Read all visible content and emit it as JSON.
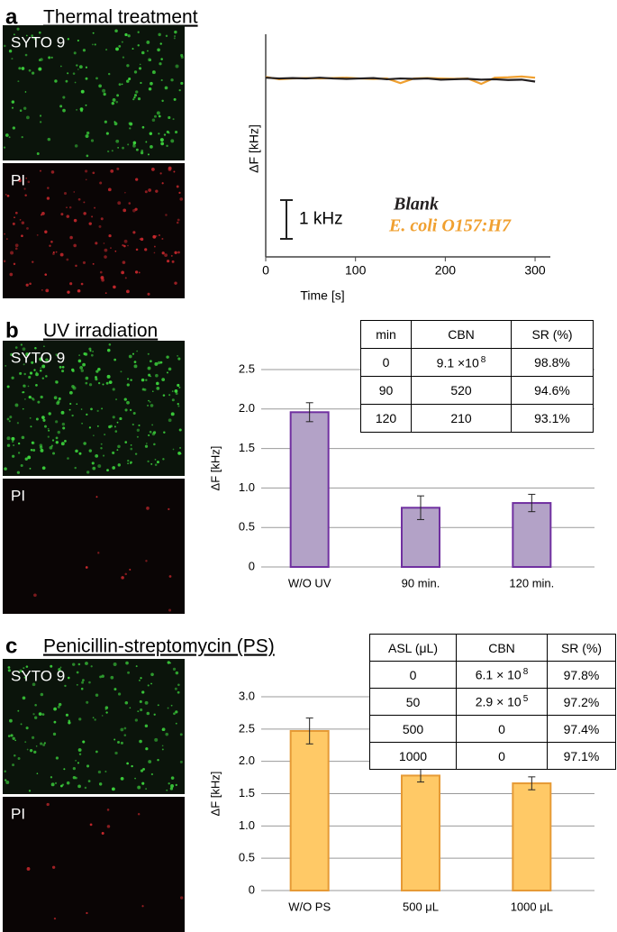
{
  "panels": [
    {
      "label": "a",
      "title": "Thermal treatment",
      "images": [
        "SYTO 9",
        "PI"
      ]
    },
    {
      "label": "b",
      "title": "UV irradiation",
      "images": [
        "SYTO 9",
        "PI"
      ]
    },
    {
      "label": "c",
      "title": "Penicillin-streptomycin (PS)",
      "images": [
        "SYTO 9",
        "PI"
      ]
    }
  ],
  "chart_data": [
    {
      "type": "line",
      "xlabel": "Time [s]",
      "ylabel": "ΔF [kHz]",
      "x": [
        0,
        15,
        30,
        45,
        60,
        75,
        90,
        105,
        120,
        135,
        150,
        165,
        180,
        195,
        210,
        225,
        240,
        255,
        270,
        285,
        300
      ],
      "series": [
        {
          "name": "Blank",
          "color": "#231f20",
          "values": [
            4.62,
            4.6,
            4.61,
            4.6,
            4.62,
            4.6,
            4.59,
            4.6,
            4.61,
            4.58,
            4.6,
            4.59,
            4.6,
            4.57,
            4.58,
            4.59,
            4.57,
            4.58,
            4.56,
            4.57,
            4.52
          ]
        },
        {
          "name": "E. coli O157:H7",
          "color": "#f0a030",
          "values": [
            4.64,
            4.58,
            4.6,
            4.61,
            4.6,
            4.61,
            4.62,
            4.6,
            4.59,
            4.6,
            4.48,
            4.6,
            4.61,
            4.6,
            4.59,
            4.6,
            4.46,
            4.62,
            4.63,
            4.65,
            4.62
          ]
        }
      ],
      "xlim": [
        0,
        317
      ],
      "xticks": [
        0,
        100,
        200,
        300
      ],
      "ylim": [
        0,
        5.74
      ],
      "scale_bar": {
        "value": 1,
        "label": "1 kHz"
      }
    },
    {
      "type": "bar",
      "ylabel": "ΔF [kHz]",
      "categories": [
        "W/O UV",
        "90 min.",
        "120 min."
      ],
      "values": [
        1.96,
        0.75,
        0.81
      ],
      "errors": [
        0.12,
        0.15,
        0.11
      ],
      "color": "#b3a2c7",
      "edge_color": "#7030a0",
      "ylim": [
        0,
        2.5
      ],
      "yticks": [
        0,
        0.5,
        {
          "value": 1,
          "label": "1.0"
        },
        1.5,
        {
          "value": 2,
          "label": "2.0"
        },
        2.5
      ],
      "grid": true
    },
    {
      "type": "bar",
      "ylabel": "ΔF [kHz]",
      "categories": [
        "W/O PS",
        "500 μL",
        "1000 μL"
      ],
      "values": [
        2.47,
        1.78,
        1.66
      ],
      "errors": [
        0.2,
        0.1,
        0.1
      ],
      "color": "#ffc966",
      "edge_color": "#e69a35",
      "ylim": [
        0,
        3
      ],
      "yticks": [
        0,
        0.5,
        {
          "value": 1,
          "label": "1.0"
        },
        1.5,
        {
          "value": 2,
          "label": "2.0"
        },
        2.5,
        {
          "value": 3,
          "label": "3.0"
        }
      ],
      "grid": true
    }
  ],
  "tables": [
    {
      "header": [
        "min",
        "CBN",
        "SR (%)"
      ],
      "rows": [
        [
          "0",
          {
            "base": "9.1 ×10",
            "exp": "8"
          },
          "98.8%"
        ],
        [
          "90",
          "520",
          "94.6%"
        ],
        [
          "120",
          "210",
          "93.1%"
        ]
      ]
    },
    {
      "header": [
        "ASL (μL)",
        "CBN",
        "SR (%)"
      ],
      "rows": [
        [
          "0",
          {
            "base": "6.1 × 10",
            "exp": "8"
          },
          "97.8%"
        ],
        [
          "50",
          {
            "base": "2.9 × 10",
            "exp": "5"
          },
          "97.2%"
        ],
        [
          "500",
          "0",
          "97.4%"
        ],
        [
          "1000",
          "0",
          "97.1%"
        ]
      ]
    }
  ]
}
